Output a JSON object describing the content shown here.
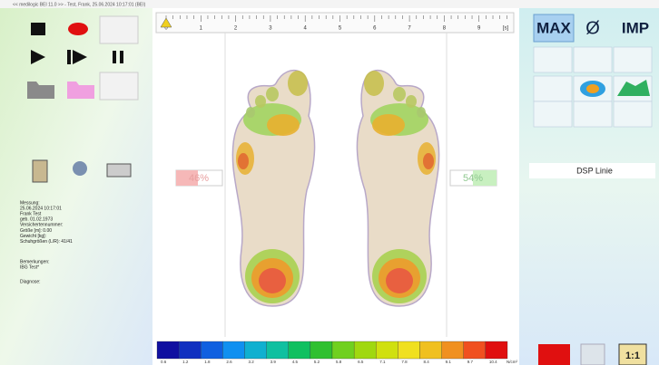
{
  "window": {
    "title": "<< medilogic BEI 11.0 >> - Test, Frank, 25.06.2024 10:17:01 (BEI)"
  },
  "patient": {
    "lines": [
      "Messung:",
      "25.06.2024 10:17:01",
      "Frank Test",
      "geb. 01.02.1973",
      "Versichertennummer:",
      "Größe [m]: 0.00",
      "Gewicht [kg]:",
      "Schuhgrößen (L/R): 41/41"
    ],
    "remarks_label": "Bemerkungen:",
    "remarks": "IBG Test*",
    "diagnosis_label": "Diagnose:"
  },
  "timeline": {
    "ticks": [
      "0",
      "1",
      "2",
      "3",
      "4",
      "5",
      "6",
      "7",
      "8",
      "9"
    ],
    "unit": "[s]"
  },
  "balance": {
    "left": "46%",
    "right": "54%"
  },
  "toolbar": {
    "max": "MAX",
    "mean": "Ø",
    "imp": "IMP"
  },
  "display": {
    "mode": "DSP Linie"
  },
  "colorbar": {
    "labels": [
      "0.6",
      "1.2",
      "1.8",
      "2.6",
      "3.2",
      "3.9",
      "4.5",
      "5.2",
      "5.8",
      "6.5",
      "7.1",
      "7.8",
      "8.4",
      "9.1",
      "9.7",
      "10.4"
    ],
    "unit": "N/cm²"
  },
  "ratio": {
    "label": "1:1"
  }
}
